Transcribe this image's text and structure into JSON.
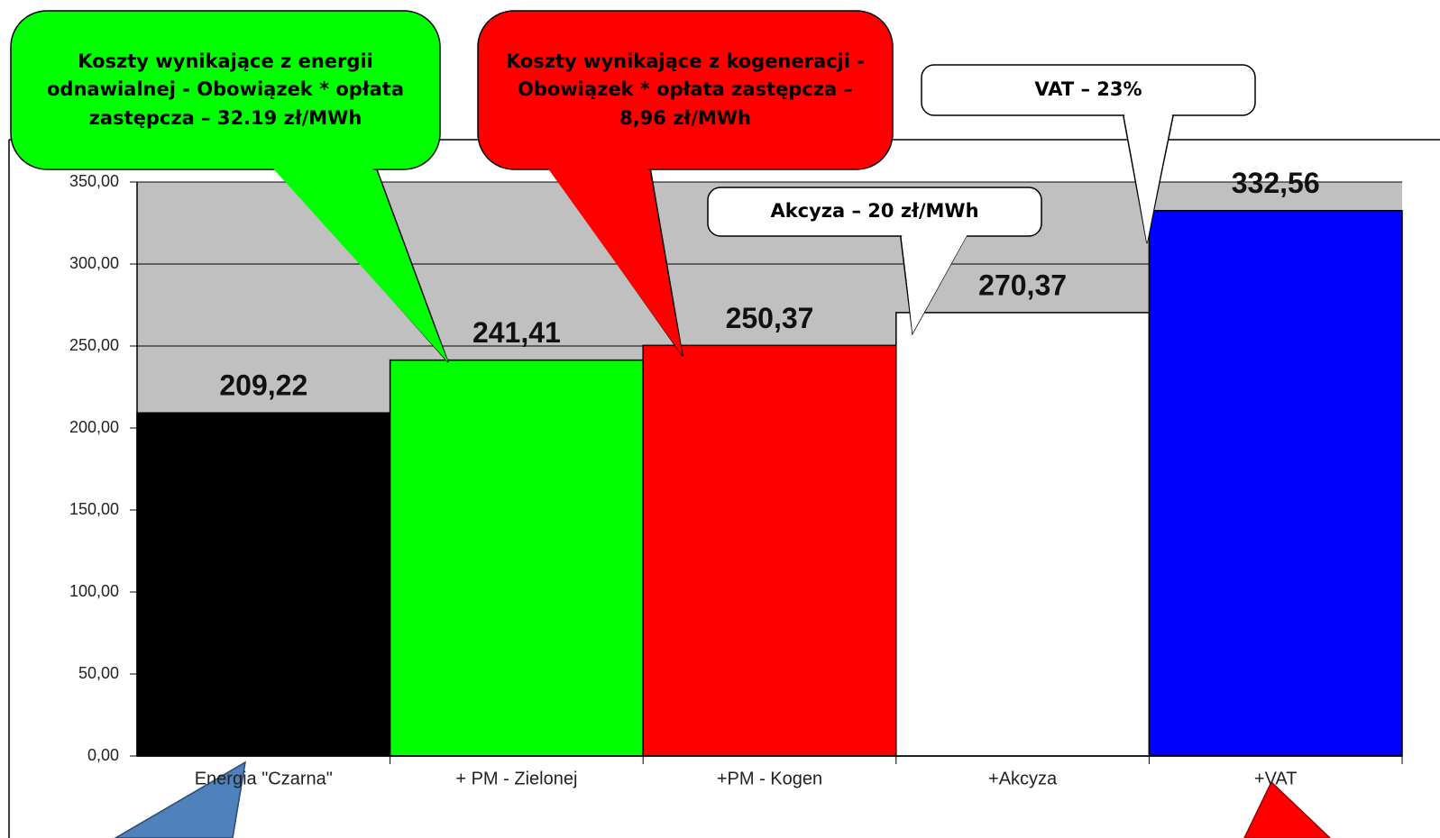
{
  "chart_data": {
    "type": "bar",
    "categories": [
      "Energia \"Czarna\"",
      "+ PM - Zielonej",
      "+PM - Kogen",
      "+Akcyza",
      "+VAT"
    ],
    "values": [
      209.22,
      241.41,
      250.37,
      270.37,
      332.56
    ],
    "value_labels": [
      "209,22",
      "241,41",
      "250,37",
      "270,37",
      "332,56"
    ],
    "colors": [
      "#000000",
      "#00ff00",
      "#ff0000",
      "#ffffff",
      "#0000ff"
    ],
    "ylim": [
      0,
      350
    ],
    "yticks": [
      {
        "value": 0,
        "label": "0,00"
      },
      {
        "value": 50,
        "label": "50,00"
      },
      {
        "value": 100,
        "label": "100,00"
      },
      {
        "value": 150,
        "label": "150,00"
      },
      {
        "value": 200,
        "label": "200,00"
      },
      {
        "value": 250,
        "label": "250,00"
      },
      {
        "value": 300,
        "label": "300,00"
      },
      {
        "value": 350,
        "label": "350,00"
      }
    ],
    "grid": true,
    "annotations": [
      "Koszty wynikające z energii odnawialnej  - Obowiązek * opłata zastępcza – 32.19 zł/MWh",
      "Koszty wynikające z kogeneracji - Obowiązek * opłata zastępcza – 8,96 zł/MWh",
      "VAT – 23%",
      "Akcyza – 20 zł/MWh"
    ]
  }
}
